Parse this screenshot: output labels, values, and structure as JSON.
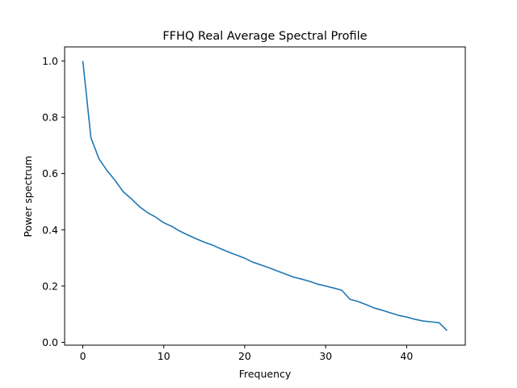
{
  "chart_data": {
    "type": "line",
    "title": "FFHQ Real Average Spectral Profile",
    "xlabel": "Frequency",
    "ylabel": "Power spectrum",
    "xlim": [
      -2.25,
      47.25
    ],
    "ylim": [
      -0.01,
      1.05
    ],
    "xticks": [
      0,
      10,
      20,
      30,
      40
    ],
    "yticks": [
      0.0,
      0.2,
      0.4,
      0.6,
      0.8,
      1.0
    ],
    "xtick_labels": [
      "0",
      "10",
      "20",
      "30",
      "40"
    ],
    "ytick_labels": [
      "0.0",
      "0.2",
      "0.4",
      "0.6",
      "0.8",
      "1.0"
    ],
    "grid": false,
    "legend": "none",
    "line_color": "#1f77b4",
    "series": [
      {
        "x": [
          0,
          1,
          2,
          3,
          4,
          5,
          6,
          7,
          8,
          9,
          10,
          11,
          12,
          13,
          14,
          15,
          16,
          17,
          18,
          19,
          20,
          21,
          22,
          23,
          24,
          25,
          26,
          27,
          28,
          29,
          30,
          31,
          32,
          33,
          34,
          35,
          36,
          37,
          38,
          39,
          40,
          41,
          42,
          43,
          44,
          45
        ],
        "values": [
          1.0,
          0.727,
          0.652,
          0.61,
          0.575,
          0.535,
          0.51,
          0.482,
          0.461,
          0.445,
          0.425,
          0.412,
          0.395,
          0.381,
          0.368,
          0.356,
          0.346,
          0.333,
          0.321,
          0.31,
          0.299,
          0.285,
          0.275,
          0.265,
          0.254,
          0.243,
          0.232,
          0.225,
          0.217,
          0.207,
          0.2,
          0.193,
          0.185,
          0.153,
          0.145,
          0.134,
          0.122,
          0.114,
          0.105,
          0.096,
          0.09,
          0.082,
          0.076,
          0.073,
          0.07,
          0.042
        ]
      }
    ]
  }
}
